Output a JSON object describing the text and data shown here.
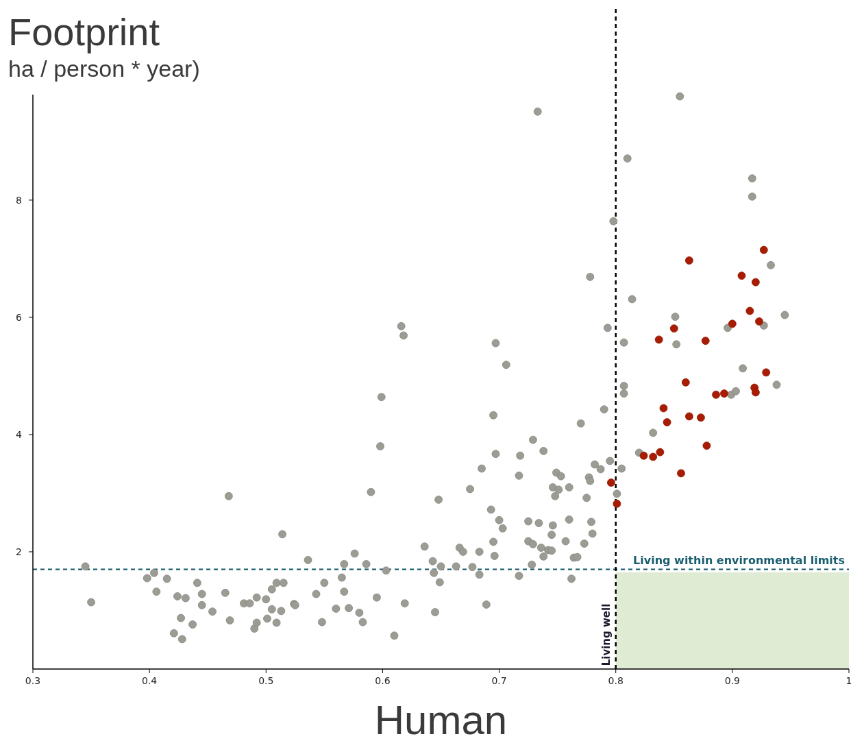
{
  "chart_data": {
    "type": "scatter",
    "title": "Footprint",
    "subtitle": "ha / person * year)",
    "xlabel": "Human",
    "xlim": [
      0.3,
      1.0
    ],
    "ylim": [
      0,
      9.8
    ],
    "xticks": [
      0.3,
      0.4,
      0.5,
      0.6,
      0.7,
      0.8,
      0.9,
      {
        "value": 1.0,
        "label": "1"
      }
    ],
    "yticks": [
      2,
      4,
      6,
      8
    ],
    "grid": false,
    "marker": "circle",
    "ref_lines": [
      {
        "axis": "y",
        "value": 1.7,
        "label": "Living within environmental limits",
        "color": "#1a5e70",
        "line_style": "dashed"
      },
      {
        "axis": "x",
        "value": 0.8,
        "label": "Living well",
        "color": "#000000",
        "line_style": "dashed"
      }
    ],
    "series": [
      {
        "type": "area",
        "marker": "none",
        "color": "#dfebd3",
        "x": [
          0.8,
          1.0
        ],
        "values": [
          1.65,
          1.65
        ]
      },
      {
        "color": "#9c9c94",
        "x": [
          0.345,
          0.35,
          0.398,
          0.404,
          0.406,
          0.415,
          0.421,
          0.424,
          0.427,
          0.428,
          0.431,
          0.437,
          0.441,
          0.445,
          0.445,
          0.454,
          0.465,
          0.468,
          0.469,
          0.481,
          0.486,
          0.49,
          0.492,
          0.492,
          0.5,
          0.501,
          0.505,
          0.505,
          0.509,
          0.509,
          0.513,
          0.514,
          0.515,
          0.524,
          0.525,
          0.536,
          0.543,
          0.548,
          0.55,
          0.56,
          0.565,
          0.567,
          0.567,
          0.571,
          0.576,
          0.58,
          0.583,
          0.586,
          0.59,
          0.595,
          0.598,
          0.599,
          0.603,
          0.61,
          0.616,
          0.618,
          0.619,
          0.636,
          0.643,
          0.644,
          0.645,
          0.648,
          0.649,
          0.65,
          0.663,
          0.666,
          0.669,
          0.675,
          0.677,
          0.683,
          0.683,
          0.685,
          0.689,
          0.693,
          0.695,
          0.695,
          0.696,
          0.697,
          0.697,
          0.7,
          0.703,
          0.706,
          0.718,
          0.717,
          0.717,
          0.725,
          0.725,
          0.728,
          0.729,
          0.729,
          0.733,
          0.734,
          0.736,
          0.738,
          0.738,
          0.742,
          0.745,
          0.745,
          0.746,
          0.746,
          0.748,
          0.749,
          0.751,
          0.753,
          0.757,
          0.76,
          0.76,
          0.762,
          0.764,
          0.767,
          0.77,
          0.773,
          0.775,
          0.777,
          0.778,
          0.778,
          0.779,
          0.78,
          0.782,
          0.787,
          0.79,
          0.793,
          0.795,
          0.798,
          0.801,
          0.805,
          0.807,
          0.807,
          0.807,
          0.81,
          0.814,
          0.82,
          0.832,
          0.851,
          0.852,
          0.855,
          0.896,
          0.899,
          0.903,
          0.909,
          0.917,
          0.917,
          0.927,
          0.933,
          0.938,
          0.945
        ],
        "values": [
          1.75,
          1.14,
          1.55,
          1.64,
          1.32,
          1.54,
          0.61,
          1.24,
          0.87,
          0.51,
          1.21,
          0.76,
          1.47,
          1.28,
          1.09,
          0.98,
          1.3,
          2.95,
          0.83,
          1.12,
          1.12,
          0.69,
          1.22,
          0.79,
          1.19,
          0.86,
          1.36,
          1.02,
          1.47,
          0.79,
          0.99,
          2.3,
          1.47,
          1.11,
          1.09,
          1.86,
          1.28,
          0.8,
          1.47,
          1.03,
          1.56,
          1.32,
          1.79,
          1.04,
          1.97,
          0.96,
          0.8,
          1.79,
          3.02,
          1.22,
          3.8,
          4.64,
          1.68,
          0.57,
          5.85,
          5.69,
          1.12,
          2.09,
          1.84,
          1.64,
          0.97,
          2.89,
          1.48,
          1.75,
          1.75,
          2.07,
          2.0,
          3.07,
          1.74,
          2.0,
          1.61,
          3.42,
          1.1,
          2.72,
          2.17,
          4.33,
          1.93,
          5.56,
          3.67,
          2.54,
          2.4,
          5.19,
          3.64,
          3.3,
          1.59,
          2.52,
          2.18,
          1.78,
          2.13,
          3.91,
          9.51,
          2.49,
          2.07,
          1.92,
          3.72,
          2.03,
          2.02,
          2.29,
          2.45,
          3.1,
          2.95,
          3.35,
          3.06,
          3.29,
          2.18,
          2.55,
          3.1,
          1.54,
          1.9,
          1.91,
          4.19,
          2.14,
          2.92,
          3.27,
          3.21,
          6.69,
          2.51,
          2.31,
          3.49,
          3.41,
          4.43,
          5.82,
          3.55,
          7.64,
          2.99,
          3.42,
          5.57,
          4.83,
          4.7,
          8.71,
          6.31,
          3.69,
          4.03,
          6.01,
          5.54,
          9.77,
          5.82,
          4.68,
          4.74,
          5.13,
          8.37,
          8.06,
          5.86,
          6.89,
          4.85,
          6.04
        ]
      },
      {
        "color": "#a81c04",
        "x": [
          0.796,
          0.801,
          0.824,
          0.832,
          0.837,
          0.838,
          0.841,
          0.844,
          0.85,
          0.856,
          0.86,
          0.863,
          0.863,
          0.873,
          0.877,
          0.878,
          0.886,
          0.893,
          0.9,
          0.908,
          0.915,
          0.92,
          0.919,
          0.92,
          0.923,
          0.927,
          0.929
        ],
        "values": [
          3.18,
          2.82,
          3.64,
          3.62,
          5.62,
          3.7,
          4.45,
          4.21,
          5.81,
          3.34,
          4.89,
          6.97,
          4.31,
          4.29,
          5.6,
          3.81,
          4.68,
          4.7,
          5.89,
          6.71,
          6.11,
          6.6,
          4.8,
          4.72,
          5.93,
          7.15,
          5.06
        ]
      }
    ]
  }
}
